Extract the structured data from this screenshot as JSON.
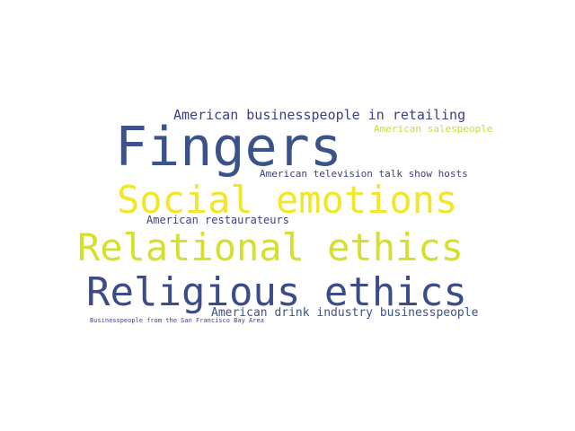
{
  "words": [
    {
      "text": "American businesspeople in retailing",
      "color": "#3b3f86"
    },
    {
      "text": "Fingers",
      "color": "#3b528b"
    },
    {
      "text": "American salespeople",
      "color": "#c9dd3b"
    },
    {
      "text": "American television talk show hosts",
      "color": "#3b3f86"
    },
    {
      "text": "Social emotions",
      "color": "#f2e62a"
    },
    {
      "text": "American restaurateurs",
      "color": "#3b3f86"
    },
    {
      "text": "Relational ethics",
      "color": "#d6df2c"
    },
    {
      "text": "Religious ethics",
      "color": "#3b4c88"
    },
    {
      "text": "American drink industry businesspeople",
      "color": "#3b528b"
    },
    {
      "text": "Businesspeople from the San Francisco Bay Area",
      "color": "#4a3f8c"
    }
  ]
}
